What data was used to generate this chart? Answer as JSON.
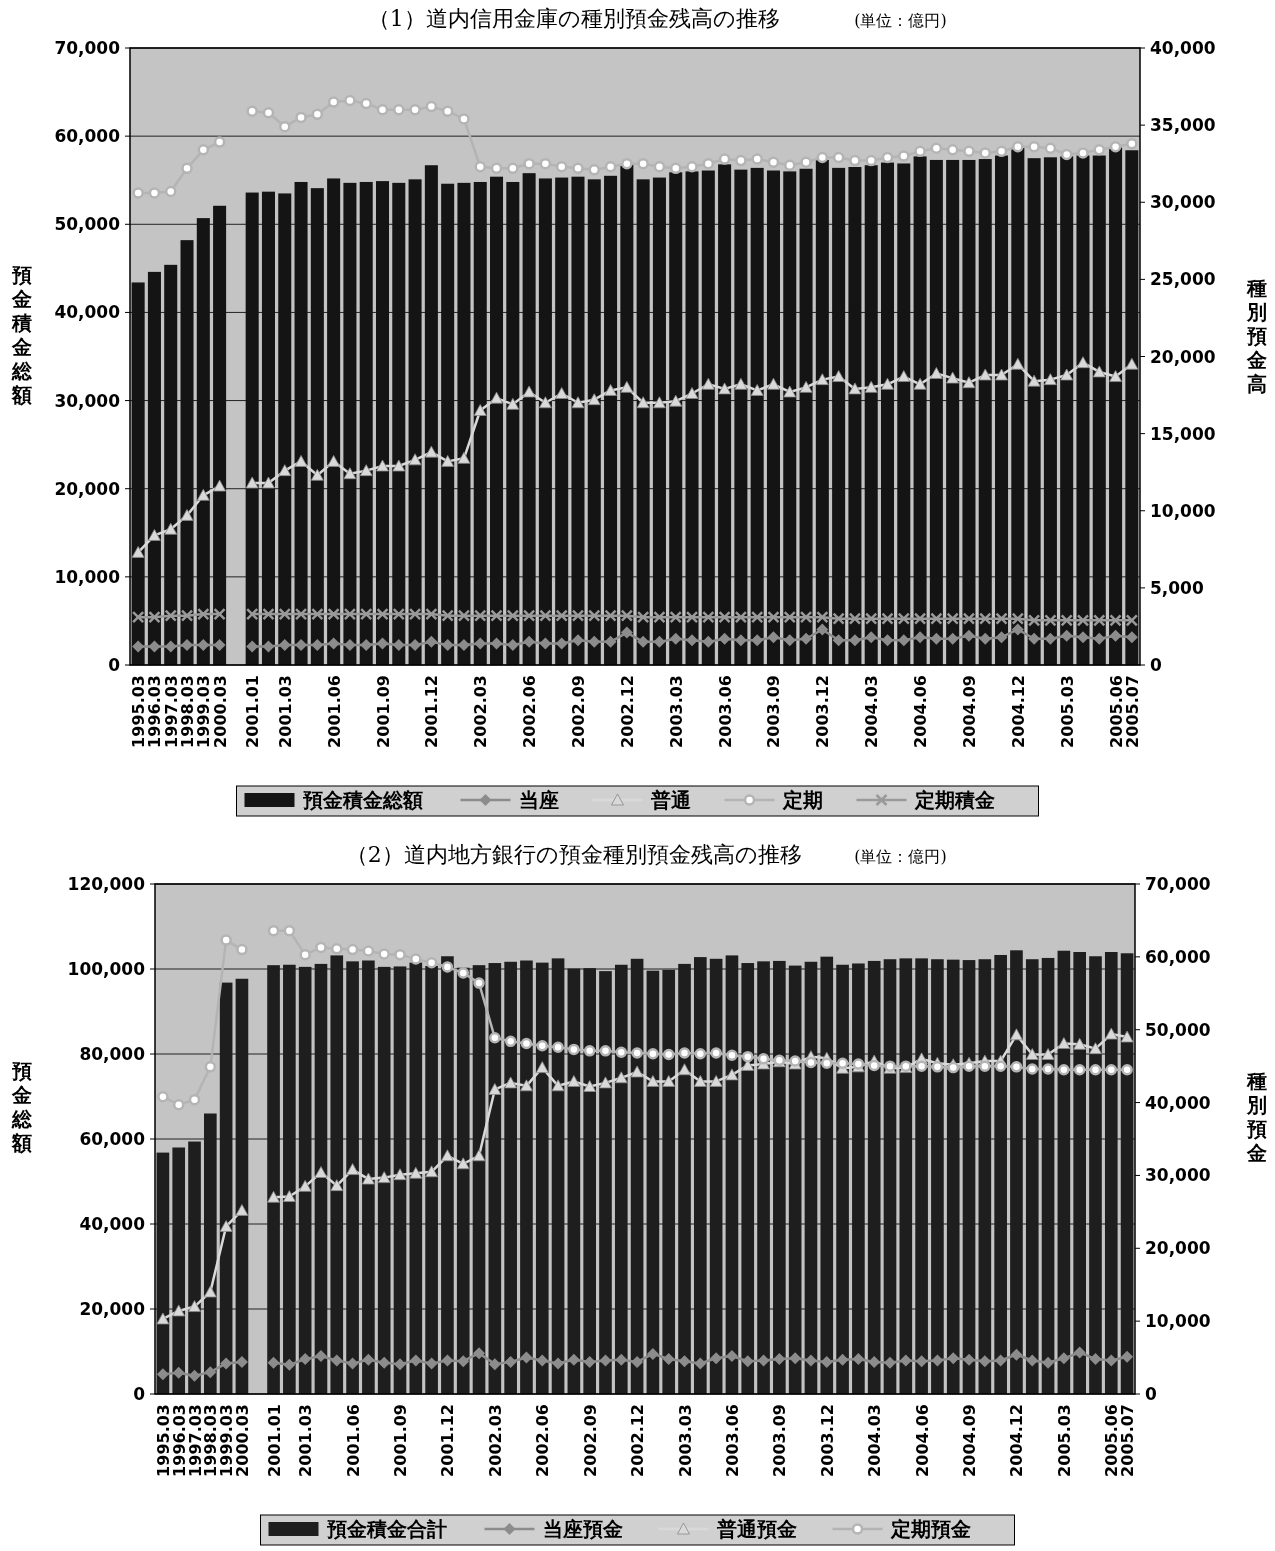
{
  "chart_data": [
    {
      "type": "bar",
      "title": "（1）道内信用金庫の種別預金残高の推移",
      "annotations": [
        "(単位：億円)"
      ],
      "ylabel": "預金積金総額",
      "y2label": "種別預金高",
      "ylim": [
        0,
        70000
      ],
      "yticks": [
        {
          "value": 0,
          "label": "0"
        },
        {
          "value": 10000,
          "label": "10,000"
        },
        {
          "value": 20000,
          "label": "20,000"
        },
        {
          "value": 30000,
          "label": "30,000"
        },
        {
          "value": 40000,
          "label": "40,000"
        },
        {
          "value": 50000,
          "label": "50,000"
        },
        {
          "value": 60000,
          "label": "60,000"
        },
        {
          "value": 70000,
          "label": "70,000"
        }
      ],
      "y2lim": [
        0,
        40000
      ],
      "y2ticks": [
        {
          "value": 0,
          "label": "0"
        },
        {
          "value": 5000,
          "label": "5,000"
        },
        {
          "value": 10000,
          "label": "10,000"
        },
        {
          "value": 15000,
          "label": "15,000"
        },
        {
          "value": 20000,
          "label": "20,000"
        },
        {
          "value": 25000,
          "label": "25,000"
        },
        {
          "value": 30000,
          "label": "30,000"
        },
        {
          "value": 35000,
          "label": "35,000"
        },
        {
          "value": 40000,
          "label": "40,000"
        }
      ],
      "grid": "y",
      "legend": "bottom",
      "categories": [
        "1995.03",
        "1996.03",
        "1997.03",
        "1998.03",
        "1999.03",
        "2000.03",
        null,
        "2001.01",
        null,
        "2001.03",
        null,
        null,
        "2001.06",
        null,
        null,
        "2001.09",
        null,
        null,
        "2001.12",
        null,
        null,
        "2002.03",
        null,
        null,
        "2002.06",
        null,
        null,
        "2002.09",
        null,
        null,
        "2002.12",
        null,
        null,
        "2003.03",
        null,
        null,
        "2003.06",
        null,
        null,
        "2003.09",
        null,
        null,
        "2003.12",
        null,
        null,
        "2004.03",
        null,
        null,
        "2004.06",
        null,
        null,
        "2004.09",
        null,
        null,
        "2004.12",
        null,
        null,
        "2005.03",
        null,
        null,
        "2005.06",
        "2005.07"
      ],
      "series": [
        {
          "name": "預金積金総額",
          "type": "bar",
          "color": "#141414",
          "values": [
            43400,
            44600,
            45400,
            48200,
            50700,
            52100,
            null,
            53600,
            53700,
            53500,
            54800,
            54100,
            55200,
            54700,
            54800,
            54900,
            54700,
            55100,
            56700,
            54600,
            54700,
            54800,
            55400,
            54800,
            55800,
            55200,
            55300,
            55400,
            55100,
            55500,
            56800,
            55100,
            55300,
            55900,
            56000,
            56100,
            56800,
            56200,
            56400,
            56100,
            56000,
            56300,
            57300,
            56400,
            56500,
            56700,
            57000,
            56900,
            57700,
            57300,
            57300,
            57300,
            57400,
            57800,
            58700,
            57500,
            57600,
            57700,
            57800,
            57800,
            58700,
            58400
          ]
        },
        {
          "name": "当座",
          "type": "line",
          "axis": "y2",
          "marker": "diamond",
          "color": "#8c8c8c",
          "values": [
            1200,
            1200,
            1200,
            1300,
            1300,
            1300,
            null,
            1200,
            1200,
            1300,
            1300,
            1300,
            1400,
            1300,
            1300,
            1400,
            1300,
            1300,
            1500,
            1300,
            1300,
            1400,
            1400,
            1300,
            1500,
            1400,
            1400,
            1600,
            1500,
            1500,
            2100,
            1500,
            1500,
            1700,
            1600,
            1500,
            1700,
            1600,
            1600,
            1800,
            1600,
            1700,
            2300,
            1600,
            1600,
            1800,
            1600,
            1600,
            1800,
            1700,
            1700,
            1900,
            1700,
            1800,
            2300,
            1700,
            1700,
            1900,
            1800,
            1700,
            1900,
            1800
          ]
        },
        {
          "name": "普通",
          "type": "line",
          "axis": "y2",
          "marker": "triangle",
          "color": "#d9d9d9",
          "values": [
            7300,
            8400,
            8800,
            9700,
            11000,
            11600,
            null,
            11800,
            11800,
            12600,
            13200,
            12300,
            13200,
            12400,
            12600,
            12900,
            12900,
            13300,
            13800,
            13200,
            13400,
            16500,
            17300,
            16900,
            17700,
            17000,
            17600,
            17000,
            17200,
            17800,
            18000,
            17000,
            17000,
            17100,
            17600,
            18200,
            17900,
            18200,
            17800,
            18200,
            17700,
            18000,
            18500,
            18700,
            17900,
            18000,
            18200,
            18700,
            18200,
            18900,
            18600,
            18300,
            18800,
            18800,
            19500,
            18400,
            18500,
            18800,
            19600,
            19000,
            18700,
            19500
          ]
        },
        {
          "name": "定期",
          "type": "line",
          "axis": "y2",
          "marker": "circle",
          "color": "#b4b4b4",
          "values": [
            30600,
            30600,
            30700,
            32200,
            33400,
            33900,
            null,
            35900,
            35800,
            34900,
            35500,
            35700,
            36500,
            36600,
            36400,
            36000,
            36000,
            36000,
            36200,
            35900,
            35400,
            32300,
            32200,
            32200,
            32500,
            32500,
            32300,
            32200,
            32100,
            32300,
            32500,
            32500,
            32300,
            32200,
            32300,
            32500,
            32800,
            32700,
            32800,
            32600,
            32400,
            32600,
            32900,
            32900,
            32700,
            32700,
            32900,
            33000,
            33300,
            33500,
            33400,
            33300,
            33200,
            33300,
            33600,
            33600,
            33500,
            33100,
            33200,
            33400,
            33600,
            33800
          ]
        },
        {
          "name": "定期積金",
          "type": "line",
          "axis": "y2",
          "marker": "cross",
          "color": "#9a9a9a",
          "values": [
            3100,
            3100,
            3200,
            3200,
            3300,
            3300,
            null,
            3300,
            3300,
            3300,
            3300,
            3300,
            3300,
            3300,
            3300,
            3300,
            3300,
            3300,
            3300,
            3200,
            3200,
            3200,
            3200,
            3200,
            3200,
            3200,
            3200,
            3200,
            3200,
            3200,
            3200,
            3100,
            3100,
            3100,
            3100,
            3100,
            3100,
            3100,
            3100,
            3100,
            3100,
            3100,
            3100,
            3000,
            3000,
            3000,
            3000,
            3000,
            3000,
            3000,
            3000,
            3000,
            3000,
            3000,
            3000,
            2900,
            2900,
            2900,
            2900,
            2900,
            2900,
            2900
          ]
        }
      ]
    },
    {
      "type": "bar",
      "title": "（2）道内地方銀行の預金種別預金残高の推移",
      "annotations": [
        "(単位：億円)"
      ],
      "ylabel": "預金総額",
      "y2label": "種別預金",
      "ylim": [
        0,
        120000
      ],
      "yticks": [
        {
          "value": 0,
          "label": "0"
        },
        {
          "value": 20000,
          "label": "20,000"
        },
        {
          "value": 40000,
          "label": "40,000"
        },
        {
          "value": 60000,
          "label": "60,000"
        },
        {
          "value": 80000,
          "label": "80,000"
        },
        {
          "value": 100000,
          "label": "100,000"
        },
        {
          "value": 120000,
          "label": "120,000"
        }
      ],
      "y2lim": [
        0,
        70000
      ],
      "y2ticks": [
        {
          "value": 0,
          "label": "0"
        },
        {
          "value": 10000,
          "label": "10,000"
        },
        {
          "value": 20000,
          "label": "20,000"
        },
        {
          "value": 30000,
          "label": "30,000"
        },
        {
          "value": 40000,
          "label": "40,000"
        },
        {
          "value": 50000,
          "label": "50,000"
        },
        {
          "value": 60000,
          "label": "60,000"
        },
        {
          "value": 70000,
          "label": "70,000"
        }
      ],
      "grid": "y",
      "legend": "bottom",
      "categories": [
        "1995.03",
        "1996.03",
        "1997.03",
        "1998.03",
        "1999.03",
        "2000.03",
        null,
        "2001.01",
        null,
        "2001.03",
        null,
        null,
        "2001.06",
        null,
        null,
        "2001.09",
        null,
        null,
        "2001.12",
        null,
        null,
        "2002.03",
        null,
        null,
        "2002.06",
        null,
        null,
        "2002.09",
        null,
        null,
        "2002.12",
        null,
        null,
        "2003.03",
        null,
        null,
        "2003.06",
        null,
        null,
        "2003.09",
        null,
        null,
        "2003.12",
        null,
        null,
        "2004.03",
        null,
        null,
        "2004.06",
        null,
        null,
        "2004.09",
        null,
        null,
        "2004.12",
        null,
        null,
        "2005.03",
        null,
        null,
        "2005.06",
        "2005.07"
      ],
      "series": [
        {
          "name": "預金積金合計",
          "type": "bar",
          "color": "#1e1e1e",
          "values": [
            56800,
            58000,
            59400,
            66000,
            96800,
            97700,
            null,
            100900,
            101000,
            100500,
            101200,
            103200,
            101800,
            102000,
            100500,
            100600,
            101500,
            100700,
            103000,
            100300,
            100900,
            101400,
            101700,
            102000,
            101500,
            102500,
            100100,
            100200,
            99500,
            101000,
            102400,
            99600,
            99800,
            101200,
            102800,
            102400,
            103200,
            101400,
            101800,
            101900,
            100800,
            101700,
            102900,
            101000,
            101300,
            101900,
            102300,
            102500,
            102500,
            102300,
            102200,
            102100,
            102300,
            103300,
            104400,
            102300,
            102600,
            104300,
            104000,
            103000,
            104000,
            103700
          ]
        },
        {
          "name": "当座預金",
          "type": "line",
          "axis": "y2",
          "marker": "diamond",
          "color": "#8c8c8c",
          "values": [
            2700,
            2900,
            2500,
            3000,
            4200,
            4400,
            null,
            4300,
            4000,
            4800,
            5200,
            4600,
            4200,
            4700,
            4300,
            4100,
            4600,
            4200,
            4600,
            4500,
            5600,
            4100,
            4400,
            5000,
            4600,
            4200,
            4700,
            4400,
            4600,
            4700,
            4400,
            5500,
            4800,
            4500,
            4200,
            4900,
            5200,
            4500,
            4600,
            4800,
            4900,
            4600,
            4400,
            4700,
            4800,
            4400,
            4300,
            4600,
            4500,
            4600,
            4900,
            4700,
            4500,
            4600,
            5400,
            4600,
            4300,
            4900,
            5700,
            4800,
            4600,
            5100
          ]
        },
        {
          "name": "普通預金",
          "type": "line",
          "axis": "y2",
          "marker": "triangle",
          "color": "#d9d9d9",
          "values": [
            10300,
            11400,
            12000,
            14000,
            23000,
            25200,
            null,
            27000,
            27100,
            28500,
            30400,
            28600,
            30800,
            29500,
            29700,
            30100,
            30300,
            30500,
            32700,
            31600,
            32700,
            41800,
            42700,
            42300,
            44800,
            42300,
            42900,
            42200,
            42700,
            43400,
            44200,
            42900,
            42900,
            44500,
            42900,
            42900,
            43800,
            45100,
            45300,
            45600,
            45300,
            46300,
            46100,
            44700,
            44900,
            45700,
            44700,
            44800,
            46000,
            45400,
            45200,
            45400,
            45700,
            45700,
            49300,
            46600,
            46600,
            48100,
            48000,
            47400,
            49400,
            49000
          ]
        },
        {
          "name": "定期預金",
          "type": "line",
          "axis": "y2",
          "marker": "circle",
          "color": "#b4b4b4",
          "values": [
            40800,
            39700,
            40400,
            44900,
            62300,
            61000,
            null,
            63600,
            63600,
            60300,
            61300,
            61100,
            61000,
            60800,
            60400,
            60300,
            59700,
            59200,
            58600,
            57800,
            56400,
            48900,
            48400,
            48100,
            47800,
            47600,
            47300,
            47100,
            47100,
            46900,
            46800,
            46700,
            46600,
            46800,
            46700,
            46800,
            46500,
            46300,
            46000,
            45800,
            45700,
            45500,
            45400,
            45400,
            45300,
            45100,
            45000,
            45000,
            45000,
            44900,
            44800,
            45000,
            45000,
            45000,
            44900,
            44600,
            44600,
            44500,
            44500,
            44500,
            44500,
            44500
          ]
        }
      ]
    }
  ]
}
